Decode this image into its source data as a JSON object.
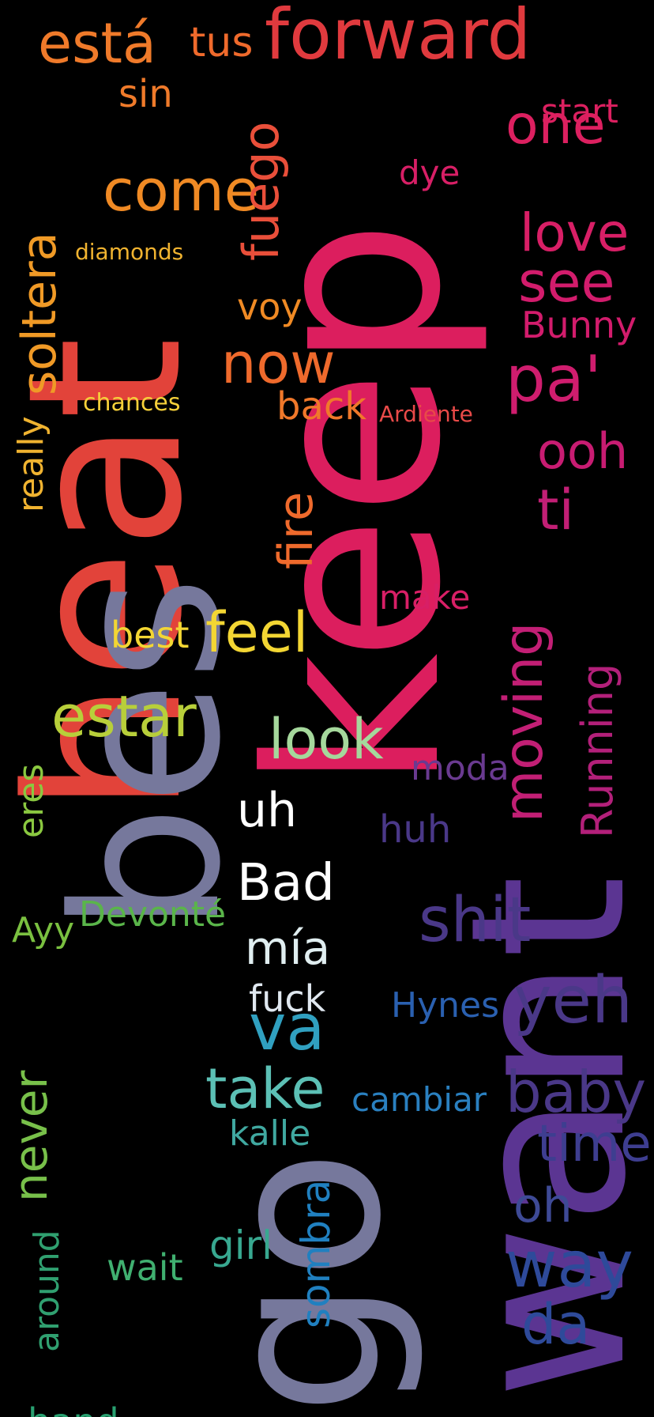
{
  "wordcloud": {
    "background": "#000000",
    "words": [
      {
        "text": "heat",
        "color": "#e2433a"
      },
      {
        "text": "keep",
        "color": "#dc1e5e"
      },
      {
        "text": "want",
        "color": "#5b3592"
      },
      {
        "text": "bes",
        "color": "#76789c"
      },
      {
        "text": "go",
        "color": "#76789c"
      },
      {
        "text": "forward",
        "color": "#e03a3e"
      },
      {
        "text": "está",
        "color": "#ef7a2a"
      },
      {
        "text": "tus",
        "color": "#ef6a2c"
      },
      {
        "text": "come",
        "color": "#f08a24"
      },
      {
        "text": "sin",
        "color": "#ef7a2a"
      },
      {
        "text": "soltera",
        "color": "#f09a26"
      },
      {
        "text": "fuego",
        "color": "#e94f3a"
      },
      {
        "text": "one",
        "color": "#dc2060"
      },
      {
        "text": "love",
        "color": "#d81f66"
      },
      {
        "text": "see",
        "color": "#d21c6c"
      },
      {
        "text": "pa'",
        "color": "#cf1d6e"
      },
      {
        "text": "ooh",
        "color": "#c81c72"
      },
      {
        "text": "Bunny",
        "color": "#d21c6c"
      },
      {
        "text": "ti",
        "color": "#c21f75"
      },
      {
        "text": "moving",
        "color": "#c21f75"
      },
      {
        "text": "Running",
        "color": "#b3207a"
      },
      {
        "text": "now",
        "color": "#ef6a2c"
      },
      {
        "text": "fire",
        "color": "#ef6a2c"
      },
      {
        "text": "back",
        "color": "#f0782a"
      },
      {
        "text": "voy",
        "color": "#f08a24"
      },
      {
        "text": "really",
        "color": "#f0b330"
      },
      {
        "text": "feel",
        "color": "#f3d633"
      },
      {
        "text": "best",
        "color": "#f3d633"
      },
      {
        "text": "estar",
        "color": "#b8cf3a"
      },
      {
        "text": "look",
        "color": "#a5d89c"
      },
      {
        "text": "uh",
        "color": "#ffffff"
      },
      {
        "text": "Bad",
        "color": "#ffffff"
      },
      {
        "text": "mía",
        "color": "#e0eef0"
      },
      {
        "text": "va",
        "color": "#30a0c0"
      },
      {
        "text": "take",
        "color": "#5cc0b5"
      },
      {
        "text": "shit",
        "color": "#4a3888"
      },
      {
        "text": "yeh",
        "color": "#4a3888"
      },
      {
        "text": "baby",
        "color": "#4a3888"
      },
      {
        "text": "time",
        "color": "#3e3e90"
      },
      {
        "text": "way",
        "color": "#2e4a9a"
      },
      {
        "text": "da",
        "color": "#2e4a9a"
      },
      {
        "text": "oh",
        "color": "#3e4a96"
      },
      {
        "text": "moda",
        "color": "#6a3a90"
      },
      {
        "text": "huh",
        "color": "#4a3888"
      },
      {
        "text": "Devonté",
        "color": "#5ab54a"
      },
      {
        "text": "Ayy",
        "color": "#7ac040"
      },
      {
        "text": "eres",
        "color": "#8ac840"
      },
      {
        "text": "never",
        "color": "#78c04a"
      },
      {
        "text": "around",
        "color": "#30a070"
      },
      {
        "text": "hand",
        "color": "#28a070"
      },
      {
        "text": "sombra",
        "color": "#2080c0"
      },
      {
        "text": "Hynes",
        "color": "#2a60b0"
      },
      {
        "text": "cambiar",
        "color": "#2a80c0"
      },
      {
        "text": "kalle",
        "color": "#40a8a0"
      },
      {
        "text": "girl",
        "color": "#38a890"
      },
      {
        "text": "wait",
        "color": "#40b070"
      },
      {
        "text": "fuck",
        "color": "#e0e8f0"
      },
      {
        "text": "make",
        "color": "#d81f66"
      },
      {
        "text": "dye",
        "color": "#d81f66"
      },
      {
        "text": "start",
        "color": "#dc2060"
      },
      {
        "text": "chances",
        "color": "#f6d03a"
      },
      {
        "text": "diamonds",
        "color": "#f0b330"
      },
      {
        "text": "Ardiente",
        "color": "#e84a48"
      }
    ]
  }
}
